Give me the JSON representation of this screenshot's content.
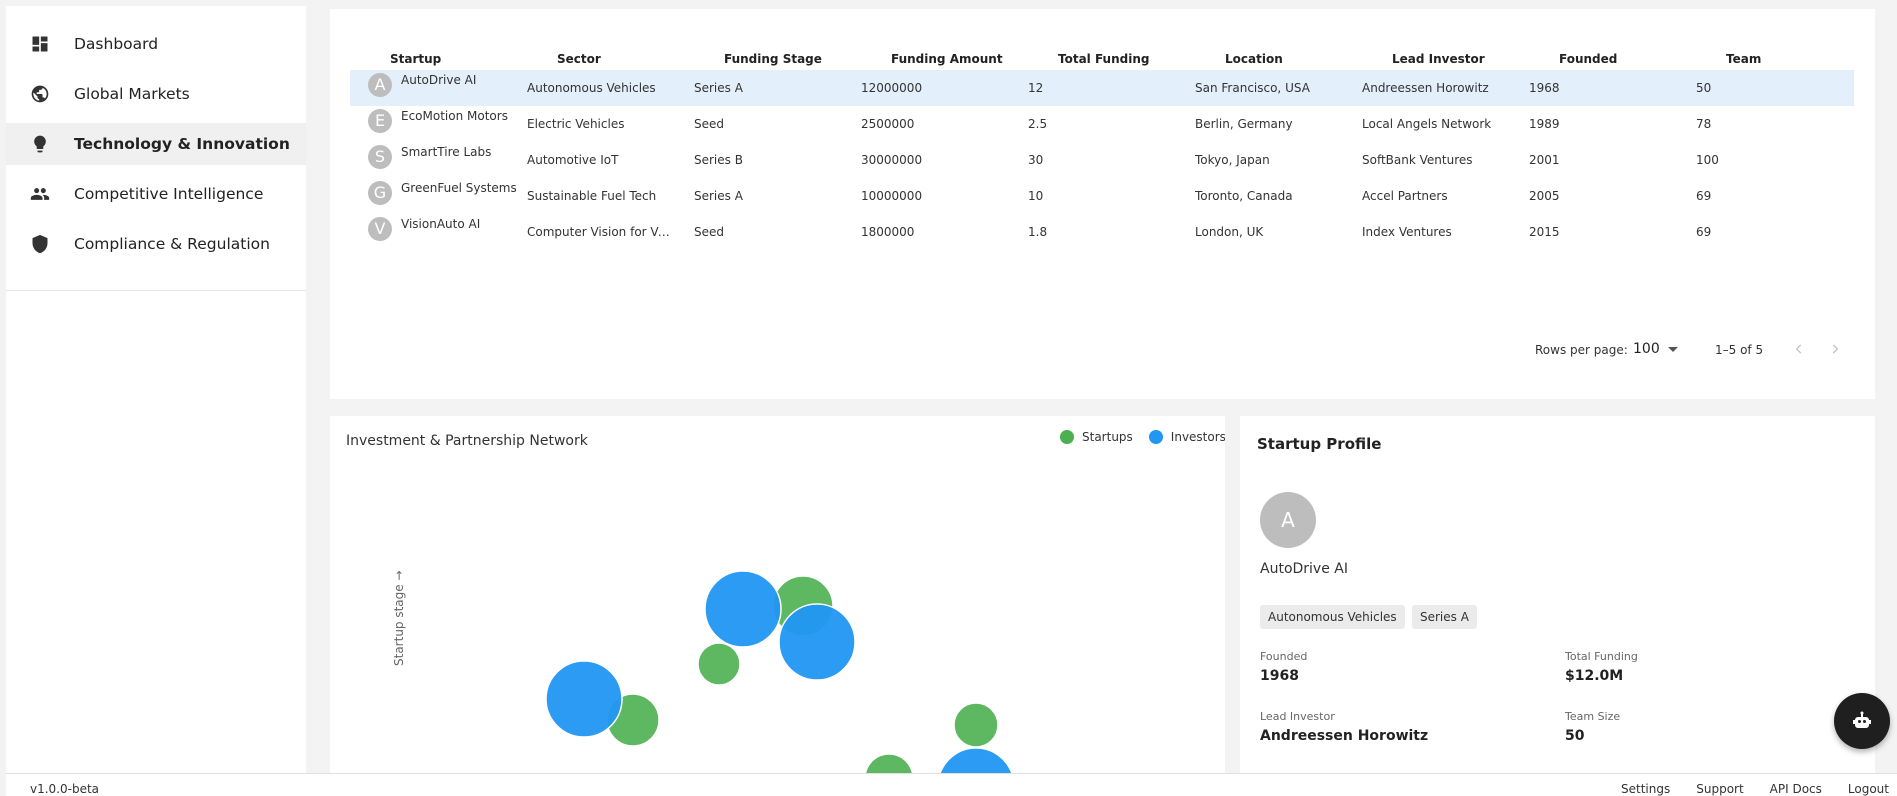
{
  "sidebar": {
    "items": [
      {
        "label": "Dashboard",
        "icon": "dashboard-icon"
      },
      {
        "label": "Global Markets",
        "icon": "globe-icon"
      },
      {
        "label": "Technology & Innovation",
        "icon": "lightbulb-icon",
        "active": true
      },
      {
        "label": "Competitive Intelligence",
        "icon": "people-icon"
      },
      {
        "label": "Compliance & Regulation",
        "icon": "shield-icon"
      }
    ]
  },
  "table": {
    "columns": [
      "Startup",
      "Sector",
      "Funding Stage",
      "Funding Amount",
      "Total Funding",
      "Location",
      "Lead Investor",
      "Founded",
      "Team"
    ],
    "rows": [
      {
        "initial": "A",
        "startup": "AutoDrive AI",
        "sector": "Autonomous Vehicles",
        "stage": "Series A",
        "amount": "12000000",
        "total": "12",
        "location": "San Francisco, USA",
        "investor": "Andreessen Horowitz",
        "founded": "1968",
        "team": "50"
      },
      {
        "initial": "E",
        "startup": "EcoMotion Motors",
        "sector": "Electric Vehicles",
        "stage": "Seed",
        "amount": "2500000",
        "total": "2.5",
        "location": "Berlin, Germany",
        "investor": "Local Angels Network",
        "founded": "1989",
        "team": "78"
      },
      {
        "initial": "S",
        "startup": "SmartTire Labs",
        "sector": "Automotive IoT",
        "stage": "Series B",
        "amount": "30000000",
        "total": "30",
        "location": "Tokyo, Japan",
        "investor": "SoftBank Ventures",
        "founded": "2001",
        "team": "100"
      },
      {
        "initial": "G",
        "startup": "GreenFuel Systems",
        "sector": "Sustainable Fuel Tech",
        "stage": "Series A",
        "amount": "10000000",
        "total": "10",
        "location": "Toronto, Canada",
        "investor": "Accel Partners",
        "founded": "2005",
        "team": "69"
      },
      {
        "initial": "V",
        "startup": "VisionAuto AI",
        "sector": "Computer Vision for Vehi...",
        "stage": "Seed",
        "amount": "1800000",
        "total": "1.8",
        "location": "London, UK",
        "investor": "Index Ventures",
        "founded": "2015",
        "team": "69"
      }
    ],
    "rows_per_page_label": "Rows per page:",
    "rows_per_page_value": "100",
    "page_range": "1–5 of 5"
  },
  "network": {
    "title": "Investment & Partnership Network",
    "legend": [
      {
        "label": "Startups",
        "color": "#4caf50"
      },
      {
        "label": "Investors",
        "color": "#2196f3"
      }
    ],
    "y_axis_label": "Startup stage →"
  },
  "profile": {
    "title": "Startup Profile",
    "initial": "A",
    "name": "AutoDrive AI",
    "chips": [
      "Autonomous Vehicles",
      "Series A"
    ],
    "founded_label": "Founded",
    "founded_value": "1968",
    "total_funding_label": "Total Funding",
    "total_funding_value": "$12.0M",
    "lead_investor_label": "Lead Investor",
    "lead_investor_value": "Andreessen Horowitz",
    "team_size_label": "Team Size",
    "team_size_value": "50"
  },
  "footer": {
    "version": "v1.0.0-beta",
    "links": [
      "Settings",
      "Support",
      "API Docs",
      "Logout"
    ]
  },
  "colors": {
    "startup": "#4caf50",
    "investor": "#2196f3",
    "selected_row": "#e3effa"
  }
}
